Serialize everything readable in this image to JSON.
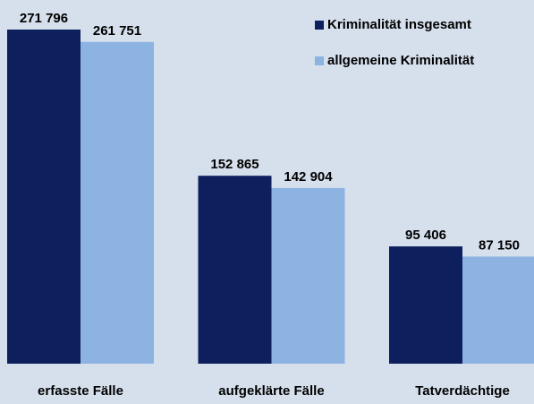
{
  "chart_data": {
    "type": "bar",
    "categories": [
      "erfasste Fälle",
      "aufgeklärte Fälle",
      "Tatverdächtige"
    ],
    "series": [
      {
        "name": "Kriminalität insgesamt",
        "color": "#0d1f5c",
        "values": [
          271796,
          152865,
          95406
        ],
        "value_labels": [
          "271 796",
          "152 865",
          "95 406"
        ]
      },
      {
        "name": "allgemeine Kriminalität",
        "color": "#8db3e2",
        "values": [
          261751,
          142904,
          87150
        ],
        "value_labels": [
          "261 751",
          "142 904",
          "87 150"
        ]
      }
    ],
    "legend": "top-right"
  }
}
